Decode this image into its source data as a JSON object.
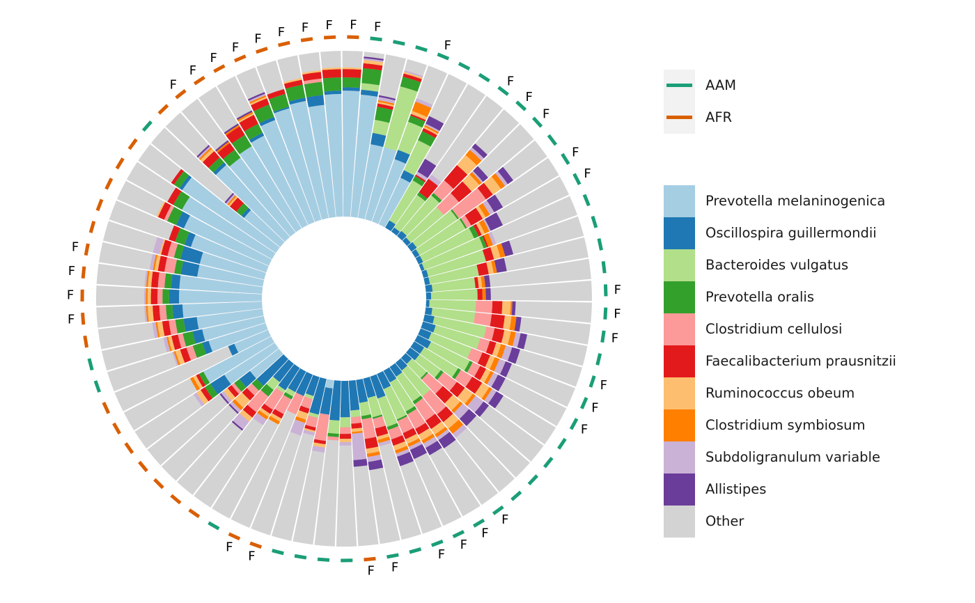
{
  "chart_data": {
    "type": "circular-stacked-bar",
    "taxa": [
      {
        "name": "Prevotella melaninogenica",
        "color": "#A6CEE3"
      },
      {
        "name": "Oscillospira guillermondii",
        "color": "#1F78B4"
      },
      {
        "name": "Bacteroides vulgatus",
        "color": "#B2DF8A"
      },
      {
        "name": "Prevotella oralis",
        "color": "#33A02C"
      },
      {
        "name": "Clostridium cellulosi",
        "color": "#FB9A99"
      },
      {
        "name": "Faecalibacterium prausnitzii",
        "color": "#E31A1C"
      },
      {
        "name": "Ruminococcus obeum",
        "color": "#FDBF6F"
      },
      {
        "name": "Clostridium symbiosum",
        "color": "#FF7F00"
      },
      {
        "name": "Subdoligranulum variable",
        "color": "#CAB2D6"
      },
      {
        "name": "Allistipes",
        "color": "#6A3D9A"
      },
      {
        "name": "Other",
        "color": "#D3D3D3"
      }
    ],
    "groups": [
      {
        "name": "AAM",
        "color": "#1B9E77"
      },
      {
        "name": "AFR",
        "color": "#D95F02"
      }
    ],
    "sample_marker_label": "F",
    "samples": [
      {
        "group": "AAM",
        "label": "F",
        "v": [
          0.74,
          0.03,
          0.04,
          0.09,
          0.0,
          0.03,
          0.02,
          0.0,
          0.01,
          0.01
        ]
      },
      {
        "group": "AAM",
        "label": "",
        "v": [
          0.45,
          0.07,
          0.08,
          0.08,
          0.0,
          0.02,
          0.01,
          0.01,
          0.02,
          0.01
        ]
      },
      {
        "group": "AAM",
        "label": "",
        "v": [
          0.45,
          0.0,
          0.38,
          0.06,
          0.0,
          0.02,
          0.01,
          0.0,
          0.01,
          0.0
        ]
      },
      {
        "group": "AAM",
        "label": "F",
        "v": [
          0.4,
          0.06,
          0.18,
          0.04,
          0.0,
          0.01,
          0.02,
          0.06,
          0.02,
          0.0
        ]
      },
      {
        "group": "AAM",
        "label": "",
        "v": [
          0.31,
          0.05,
          0.2,
          0.06,
          0.0,
          0.02,
          0.01,
          0.01,
          0.01,
          0.05
        ]
      },
      {
        "group": "AAM",
        "label": "",
        "v": [
          0.0,
          0.05,
          0.28,
          0.03,
          0.0,
          0.01,
          0.0,
          0.0,
          0.02,
          0.09
        ]
      },
      {
        "group": "AAM",
        "label": "F",
        "v": [
          0.0,
          0.03,
          0.24,
          0.02,
          0.0,
          0.1,
          0.0,
          0.0,
          0.03,
          0.0
        ]
      },
      {
        "group": "AAM",
        "label": "F",
        "v": [
          0.0,
          0.04,
          0.28,
          0.02,
          0.1,
          0.12,
          0.08,
          0.04,
          0.02,
          0.03
        ]
      },
      {
        "group": "AAM",
        "label": "F",
        "v": [
          0.0,
          0.03,
          0.26,
          0.0,
          0.12,
          0.1,
          0.06,
          0.02,
          0.01,
          0.04
        ]
      },
      {
        "group": "AAM",
        "label": "",
        "v": [
          0.0,
          0.04,
          0.3,
          0.01,
          0.2,
          0.05,
          0.06,
          0.03,
          0.02,
          0.04
        ]
      },
      {
        "group": "AAM",
        "label": "F",
        "v": [
          0.0,
          0.03,
          0.32,
          0.01,
          0.03,
          0.08,
          0.02,
          0.03,
          0.03,
          0.06
        ]
      },
      {
        "group": "AAM",
        "label": "F",
        "v": [
          0.0,
          0.03,
          0.34,
          0.03,
          0.0,
          0.02,
          0.02,
          0.03,
          0.01,
          0.08
        ]
      },
      {
        "group": "AAM",
        "label": "",
        "v": [
          0.0,
          0.02,
          0.38,
          0.02,
          0.0,
          0.01,
          0.0,
          0.03,
          0.02,
          0.0
        ]
      },
      {
        "group": "AAM",
        "label": "",
        "v": [
          0.0,
          0.03,
          0.36,
          0.0,
          0.0,
          0.05,
          0.04,
          0.03,
          0.0,
          0.05
        ]
      },
      {
        "group": "AAM",
        "label": "",
        "v": [
          0.0,
          0.03,
          0.3,
          0.0,
          0.0,
          0.06,
          0.03,
          0.02,
          0.0,
          0.06
        ]
      },
      {
        "group": "AAM",
        "label": "",
        "v": [
          0.0,
          0.04,
          0.26,
          0.0,
          0.0,
          0.02,
          0.02,
          0.02,
          0.0,
          0.03
        ]
      },
      {
        "group": "AAM",
        "label": "F",
        "v": [
          0.0,
          0.03,
          0.28,
          0.0,
          0.0,
          0.03,
          0.0,
          0.02,
          0.0,
          0.03
        ]
      },
      {
        "group": "AAM",
        "label": "F",
        "v": [
          0.0,
          0.02,
          0.28,
          0.0,
          0.1,
          0.06,
          0.05,
          0.01,
          0.0,
          0.02
        ]
      },
      {
        "group": "AAM",
        "label": "F",
        "v": [
          0.0,
          0.04,
          0.26,
          0.0,
          0.1,
          0.08,
          0.04,
          0.03,
          0.0,
          0.03
        ]
      },
      {
        "group": "AAM",
        "label": "",
        "v": [
          0.0,
          0.06,
          0.32,
          0.0,
          0.05,
          0.06,
          0.04,
          0.03,
          0.03,
          0.04
        ]
      },
      {
        "group": "AAM",
        "label": "F",
        "v": [
          0.0,
          0.08,
          0.28,
          0.0,
          0.06,
          0.04,
          0.03,
          0.03,
          0.04,
          0.05
        ]
      },
      {
        "group": "AAM",
        "label": "F",
        "v": [
          0.0,
          0.07,
          0.26,
          0.0,
          0.07,
          0.05,
          0.03,
          0.03,
          0.04,
          0.04
        ]
      },
      {
        "group": "AAM",
        "label": "F",
        "v": [
          0.0,
          0.09,
          0.26,
          0.02,
          0.05,
          0.04,
          0.03,
          0.02,
          0.03,
          0.05
        ]
      },
      {
        "group": "AAM",
        "label": "",
        "v": [
          0.0,
          0.07,
          0.24,
          0.02,
          0.08,
          0.07,
          0.05,
          0.02,
          0.03,
          0.05
        ]
      },
      {
        "group": "AAM",
        "label": "",
        "v": [
          0.0,
          0.07,
          0.16,
          0.02,
          0.1,
          0.06,
          0.06,
          0.02,
          0.06,
          0.04
        ]
      },
      {
        "group": "AAM",
        "label": "",
        "v": [
          0.0,
          0.05,
          0.12,
          0.01,
          0.12,
          0.08,
          0.06,
          0.02,
          0.05,
          0.06
        ]
      },
      {
        "group": "AAM",
        "label": "",
        "v": [
          0.0,
          0.06,
          0.2,
          0.0,
          0.14,
          0.06,
          0.05,
          0.04,
          0.03,
          0.0
        ]
      },
      {
        "group": "AAM",
        "label": "F",
        "v": [
          0.0,
          0.07,
          0.18,
          0.02,
          0.12,
          0.06,
          0.04,
          0.02,
          0.02,
          0.06
        ]
      },
      {
        "group": "AAM",
        "label": "F",
        "v": [
          0.0,
          0.08,
          0.2,
          0.02,
          0.1,
          0.04,
          0.04,
          0.02,
          0.03,
          0.05
        ]
      },
      {
        "group": "AAM",
        "label": "F",
        "v": [
          0.0,
          0.1,
          0.2,
          0.01,
          0.08,
          0.04,
          0.03,
          0.02,
          0.02,
          0.06
        ]
      },
      {
        "group": "AAM",
        "label": "F",
        "v": [
          0.0,
          0.14,
          0.18,
          0.02,
          0.06,
          0.04,
          0.03,
          0.02,
          0.02,
          0.06
        ]
      },
      {
        "group": "AAM",
        "label": "",
        "v": [
          0.0,
          0.12,
          0.12,
          0.01,
          0.06,
          0.05,
          0.02,
          0.02,
          0.02,
          0.0
        ]
      },
      {
        "group": "AAM",
        "label": "F",
        "v": [
          0.0,
          0.14,
          0.08,
          0.02,
          0.12,
          0.06,
          0.03,
          0.02,
          0.03,
          0.05
        ]
      },
      {
        "group": "AFR",
        "label": "F",
        "v": [
          0.0,
          0.18,
          0.04,
          0.0,
          0.04,
          0.03,
          0.02,
          0.01,
          0.16,
          0.04
        ]
      },
      {
        "group": "AAM",
        "label": "",
        "v": [
          0.0,
          0.22,
          0.06,
          0.0,
          0.04,
          0.03,
          0.02,
          0.0,
          0.02,
          0.0
        ]
      },
      {
        "group": "AAM",
        "label": "",
        "v": [
          0.0,
          0.24,
          0.08,
          0.02,
          0.02,
          0.0,
          0.0,
          0.0,
          0.0,
          0.0
        ]
      },
      {
        "group": "AAM",
        "label": "",
        "v": [
          0.05,
          0.16,
          0.0,
          0.0,
          0.16,
          0.02,
          0.02,
          0.0,
          0.03,
          0.0
        ]
      },
      {
        "group": "AAM",
        "label": "",
        "v": [
          0.0,
          0.22,
          0.02,
          0.0,
          0.06,
          0.02,
          0.01,
          0.0,
          0.02,
          0.0
        ]
      },
      {
        "group": "AFR",
        "label": "F",
        "v": [
          0.0,
          0.12,
          0.02,
          0.0,
          0.06,
          0.03,
          0.04,
          0.02,
          0.08,
          0.0
        ]
      },
      {
        "group": "AFR",
        "label": "F",
        "v": [
          0.0,
          0.14,
          0.0,
          0.0,
          0.12,
          0.0,
          0.0,
          0.0,
          0.0,
          0.0
        ]
      },
      {
        "group": "AAM",
        "label": "",
        "v": [
          0.0,
          0.14,
          0.03,
          0.02,
          0.1,
          0.03,
          0.02,
          0.02,
          0.0,
          0.0
        ]
      },
      {
        "group": "AFR",
        "label": "",
        "v": [
          0.0,
          0.16,
          0.02,
          0.0,
          0.12,
          0.03,
          0.02,
          0.02,
          0.04,
          0.0
        ]
      },
      {
        "group": "AFR",
        "label": "",
        "v": [
          0.0,
          0.14,
          0.06,
          0.05,
          0.12,
          0.04,
          0.03,
          0.0,
          0.06,
          0.01
        ]
      },
      {
        "group": "AFR",
        "label": "",
        "v": [
          0.0,
          0.22,
          0.0,
          0.04,
          0.04,
          0.04,
          0.06,
          0.02,
          0.02,
          0.01
        ]
      },
      {
        "group": "AFR",
        "label": "",
        "v": [
          0.22,
          0.08,
          0.0,
          0.04,
          0.02,
          0.03,
          0.03,
          0.0,
          0.02,
          0.01
        ]
      },
      {
        "group": "AFR",
        "label": "",
        "v": [
          0.36,
          0.1,
          0.0,
          0.04,
          0.0,
          0.03,
          0.03,
          0.0,
          0.02,
          0.0
        ]
      },
      {
        "group": "AFR",
        "label": "",
        "v": [
          0.46,
          0.0,
          0.0,
          0.03,
          0.0,
          0.02,
          0.02,
          0.02,
          0.0,
          0.0
        ]
      },
      {
        "group": "AFR",
        "label": "",
        "v": [
          0.22,
          0.04,
          0.0,
          0.0,
          0.0,
          0.0,
          0.0,
          0.0,
          0.0,
          0.0
        ]
      },
      {
        "group": "AAM",
        "label": "",
        "v": [
          0.36,
          0.04,
          0.0,
          0.06,
          0.04,
          0.04,
          0.03,
          0.01,
          0.01,
          0.0
        ]
      },
      {
        "group": "AAM",
        "label": "",
        "v": [
          0.38,
          0.06,
          0.0,
          0.06,
          0.03,
          0.04,
          0.02,
          0.01,
          0.02,
          0.0
        ]
      },
      {
        "group": "AFR",
        "label": "",
        "v": [
          0.4,
          0.08,
          0.0,
          0.05,
          0.04,
          0.04,
          0.03,
          0.01,
          0.02,
          0.0
        ]
      },
      {
        "group": "AFR",
        "label": "F",
        "v": [
          0.48,
          0.06,
          0.0,
          0.04,
          0.04,
          0.04,
          0.03,
          0.01,
          0.01,
          0.0
        ]
      },
      {
        "group": "AFR",
        "label": "F",
        "v": [
          0.5,
          0.06,
          0.0,
          0.04,
          0.03,
          0.04,
          0.02,
          0.01,
          0.01,
          0.0
        ]
      },
      {
        "group": "AFR",
        "label": "F",
        "v": [
          0.5,
          0.05,
          0.0,
          0.04,
          0.04,
          0.04,
          0.02,
          0.01,
          0.01,
          0.0
        ]
      },
      {
        "group": "AFR",
        "label": "F",
        "v": [
          0.4,
          0.1,
          0.0,
          0.04,
          0.06,
          0.04,
          0.02,
          0.01,
          0.02,
          0.0
        ]
      },
      {
        "group": "AFR",
        "label": "",
        "v": [
          0.4,
          0.12,
          0.0,
          0.04,
          0.04,
          0.04,
          0.01,
          0.0,
          0.04,
          0.0
        ]
      },
      {
        "group": "AFR",
        "label": "",
        "v": [
          0.48,
          0.04,
          0.0,
          0.06,
          0.0,
          0.04,
          0.0,
          0.0,
          0.0,
          0.0
        ]
      },
      {
        "group": "AFR",
        "label": "",
        "v": [
          0.56,
          0.05,
          0.0,
          0.06,
          0.02,
          0.04,
          0.01,
          0.0,
          0.0,
          0.0
        ]
      },
      {
        "group": "AFR",
        "label": "",
        "v": [
          0.62,
          0.0,
          0.0,
          0.06,
          0.0,
          0.04,
          0.0,
          0.0,
          0.0,
          0.0
        ]
      },
      {
        "group": "AFR",
        "label": "",
        "v": [
          0.68,
          0.02,
          0.0,
          0.04,
          0.0,
          0.02,
          0.0,
          0.0,
          0.0,
          0.0
        ]
      },
      {
        "group": "AAM",
        "label": "",
        "v": [
          0.28,
          0.02,
          0.0,
          0.04,
          0.0,
          0.05,
          0.01,
          0.01,
          0.01,
          0.01
        ]
      },
      {
        "group": "AFR",
        "label": "",
        "v": [
          0.58,
          0.02,
          0.0,
          0.04,
          0.0,
          0.05,
          0.02,
          0.01,
          0.01,
          0.01
        ]
      },
      {
        "group": "AFR",
        "label": "F",
        "v": [
          0.56,
          0.0,
          0.0,
          0.06,
          0.0,
          0.05,
          0.0,
          0.01,
          0.0,
          0.01
        ]
      },
      {
        "group": "AFR",
        "label": "F",
        "v": [
          0.58,
          0.0,
          0.0,
          0.08,
          0.0,
          0.06,
          0.0,
          0.01,
          0.0,
          0.01
        ]
      },
      {
        "group": "AFR",
        "label": "F",
        "v": [
          0.6,
          0.02,
          0.0,
          0.06,
          0.0,
          0.06,
          0.01,
          0.01,
          0.0,
          0.01
        ]
      },
      {
        "group": "AFR",
        "label": "F",
        "v": [
          0.66,
          0.02,
          0.0,
          0.08,
          0.0,
          0.04,
          0.01,
          0.01,
          0.01,
          0.01
        ]
      },
      {
        "group": "AFR",
        "label": "F",
        "v": [
          0.7,
          0.01,
          0.0,
          0.08,
          0.0,
          0.03,
          0.0,
          0.0,
          0.0,
          0.0
        ]
      },
      {
        "group": "AFR",
        "label": "F",
        "v": [
          0.72,
          0.02,
          0.0,
          0.08,
          0.0,
          0.03,
          0.01,
          0.0,
          0.0,
          0.0
        ]
      },
      {
        "group": "AFR",
        "label": "F",
        "v": [
          0.68,
          0.06,
          0.0,
          0.08,
          0.02,
          0.04,
          0.01,
          0.0,
          0.0,
          0.0
        ]
      },
      {
        "group": "AFR",
        "label": "F",
        "v": [
          0.74,
          0.02,
          0.0,
          0.08,
          0.0,
          0.05,
          0.01,
          0.0,
          0.0,
          0.0
        ]
      },
      {
        "group": "AFR",
        "label": "F",
        "v": [
          0.76,
          0.02,
          0.0,
          0.06,
          0.0,
          0.05,
          0.01,
          0.0,
          0.0,
          0.0
        ]
      }
    ]
  }
}
